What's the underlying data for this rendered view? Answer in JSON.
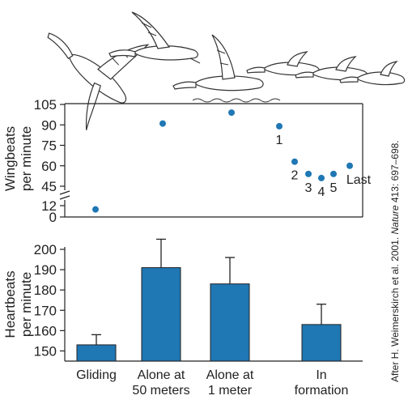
{
  "citation": {
    "prefix": "After H. Weimerskirch et al. 2001. ",
    "journal": "Nature",
    "suffix": " 413: 697–698."
  },
  "chart_data": [
    {
      "type": "scatter",
      "ylabel": [
        "Wingbeats",
        "per minute"
      ],
      "yticks": [
        0,
        12,
        45,
        60,
        75,
        90,
        105
      ],
      "axis_break": "between 12 and 45",
      "ylim": [
        0,
        105
      ],
      "marker_color": "#1f77b4",
      "points": [
        {
          "group": "Gliding",
          "y": 8,
          "label": ""
        },
        {
          "group": "Alone at 50 meters",
          "y": 91,
          "label": ""
        },
        {
          "group": "Alone at 1 meter",
          "y": 99,
          "label": ""
        },
        {
          "group": "In formation",
          "y": 89,
          "label": "1"
        },
        {
          "group": "In formation",
          "y": 63,
          "label": "2"
        },
        {
          "group": "In formation",
          "y": 54,
          "label": "3"
        },
        {
          "group": "In formation",
          "y": 51,
          "label": "4"
        },
        {
          "group": "In formation",
          "y": 54,
          "label": "5"
        },
        {
          "group": "In formation",
          "y": 60,
          "label": "Last"
        }
      ]
    },
    {
      "type": "bar",
      "ylabel": [
        "Heartbeats",
        "per minute"
      ],
      "categories": [
        [
          "Gliding"
        ],
        [
          "Alone at",
          "50 meters"
        ],
        [
          "Alone at",
          "1 meter"
        ],
        [
          "In",
          "formation"
        ]
      ],
      "values": [
        153,
        191,
        183,
        163
      ],
      "errors": [
        5,
        14,
        13,
        10
      ],
      "ylim": [
        145,
        200
      ],
      "yticks": [
        150,
        160,
        170,
        180,
        190,
        200
      ],
      "bar_color": "#1f77b4"
    }
  ]
}
